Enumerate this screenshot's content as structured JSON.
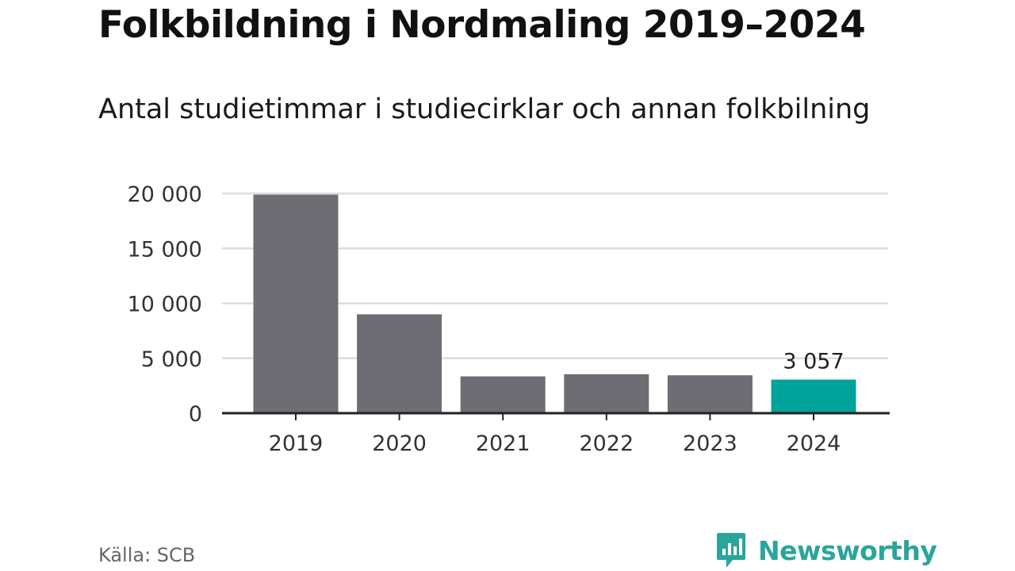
{
  "title": "Folkbildning i Nordmaling 2019–2024",
  "subtitle": "Antal studietimmar i studiecirklar och annan folkbilning",
  "source": "Källa: SCB",
  "brand": {
    "name": "Newsworthy",
    "icon": "newsworthy-logo-icon"
  },
  "colors": {
    "bar": "#6d6d73",
    "highlight": "#00a39a",
    "grid": "#dddddd",
    "axis": "#222222",
    "brand": "#2aa59b"
  },
  "chart_data": {
    "type": "bar",
    "categories": [
      "2019",
      "2020",
      "2021",
      "2022",
      "2023",
      "2024"
    ],
    "values": [
      19900,
      9000,
      3350,
      3550,
      3450,
      3057
    ],
    "highlight_index": 5,
    "data_labels": {
      "5": "3 057"
    },
    "yticks": [
      0,
      5000,
      10000,
      15000,
      20000
    ],
    "ytick_labels": [
      "0",
      "5 000",
      "10 000",
      "15 000",
      "20 000"
    ],
    "ylim": [
      0,
      20000
    ],
    "xlabel": "",
    "ylabel": "",
    "grid": true
  }
}
